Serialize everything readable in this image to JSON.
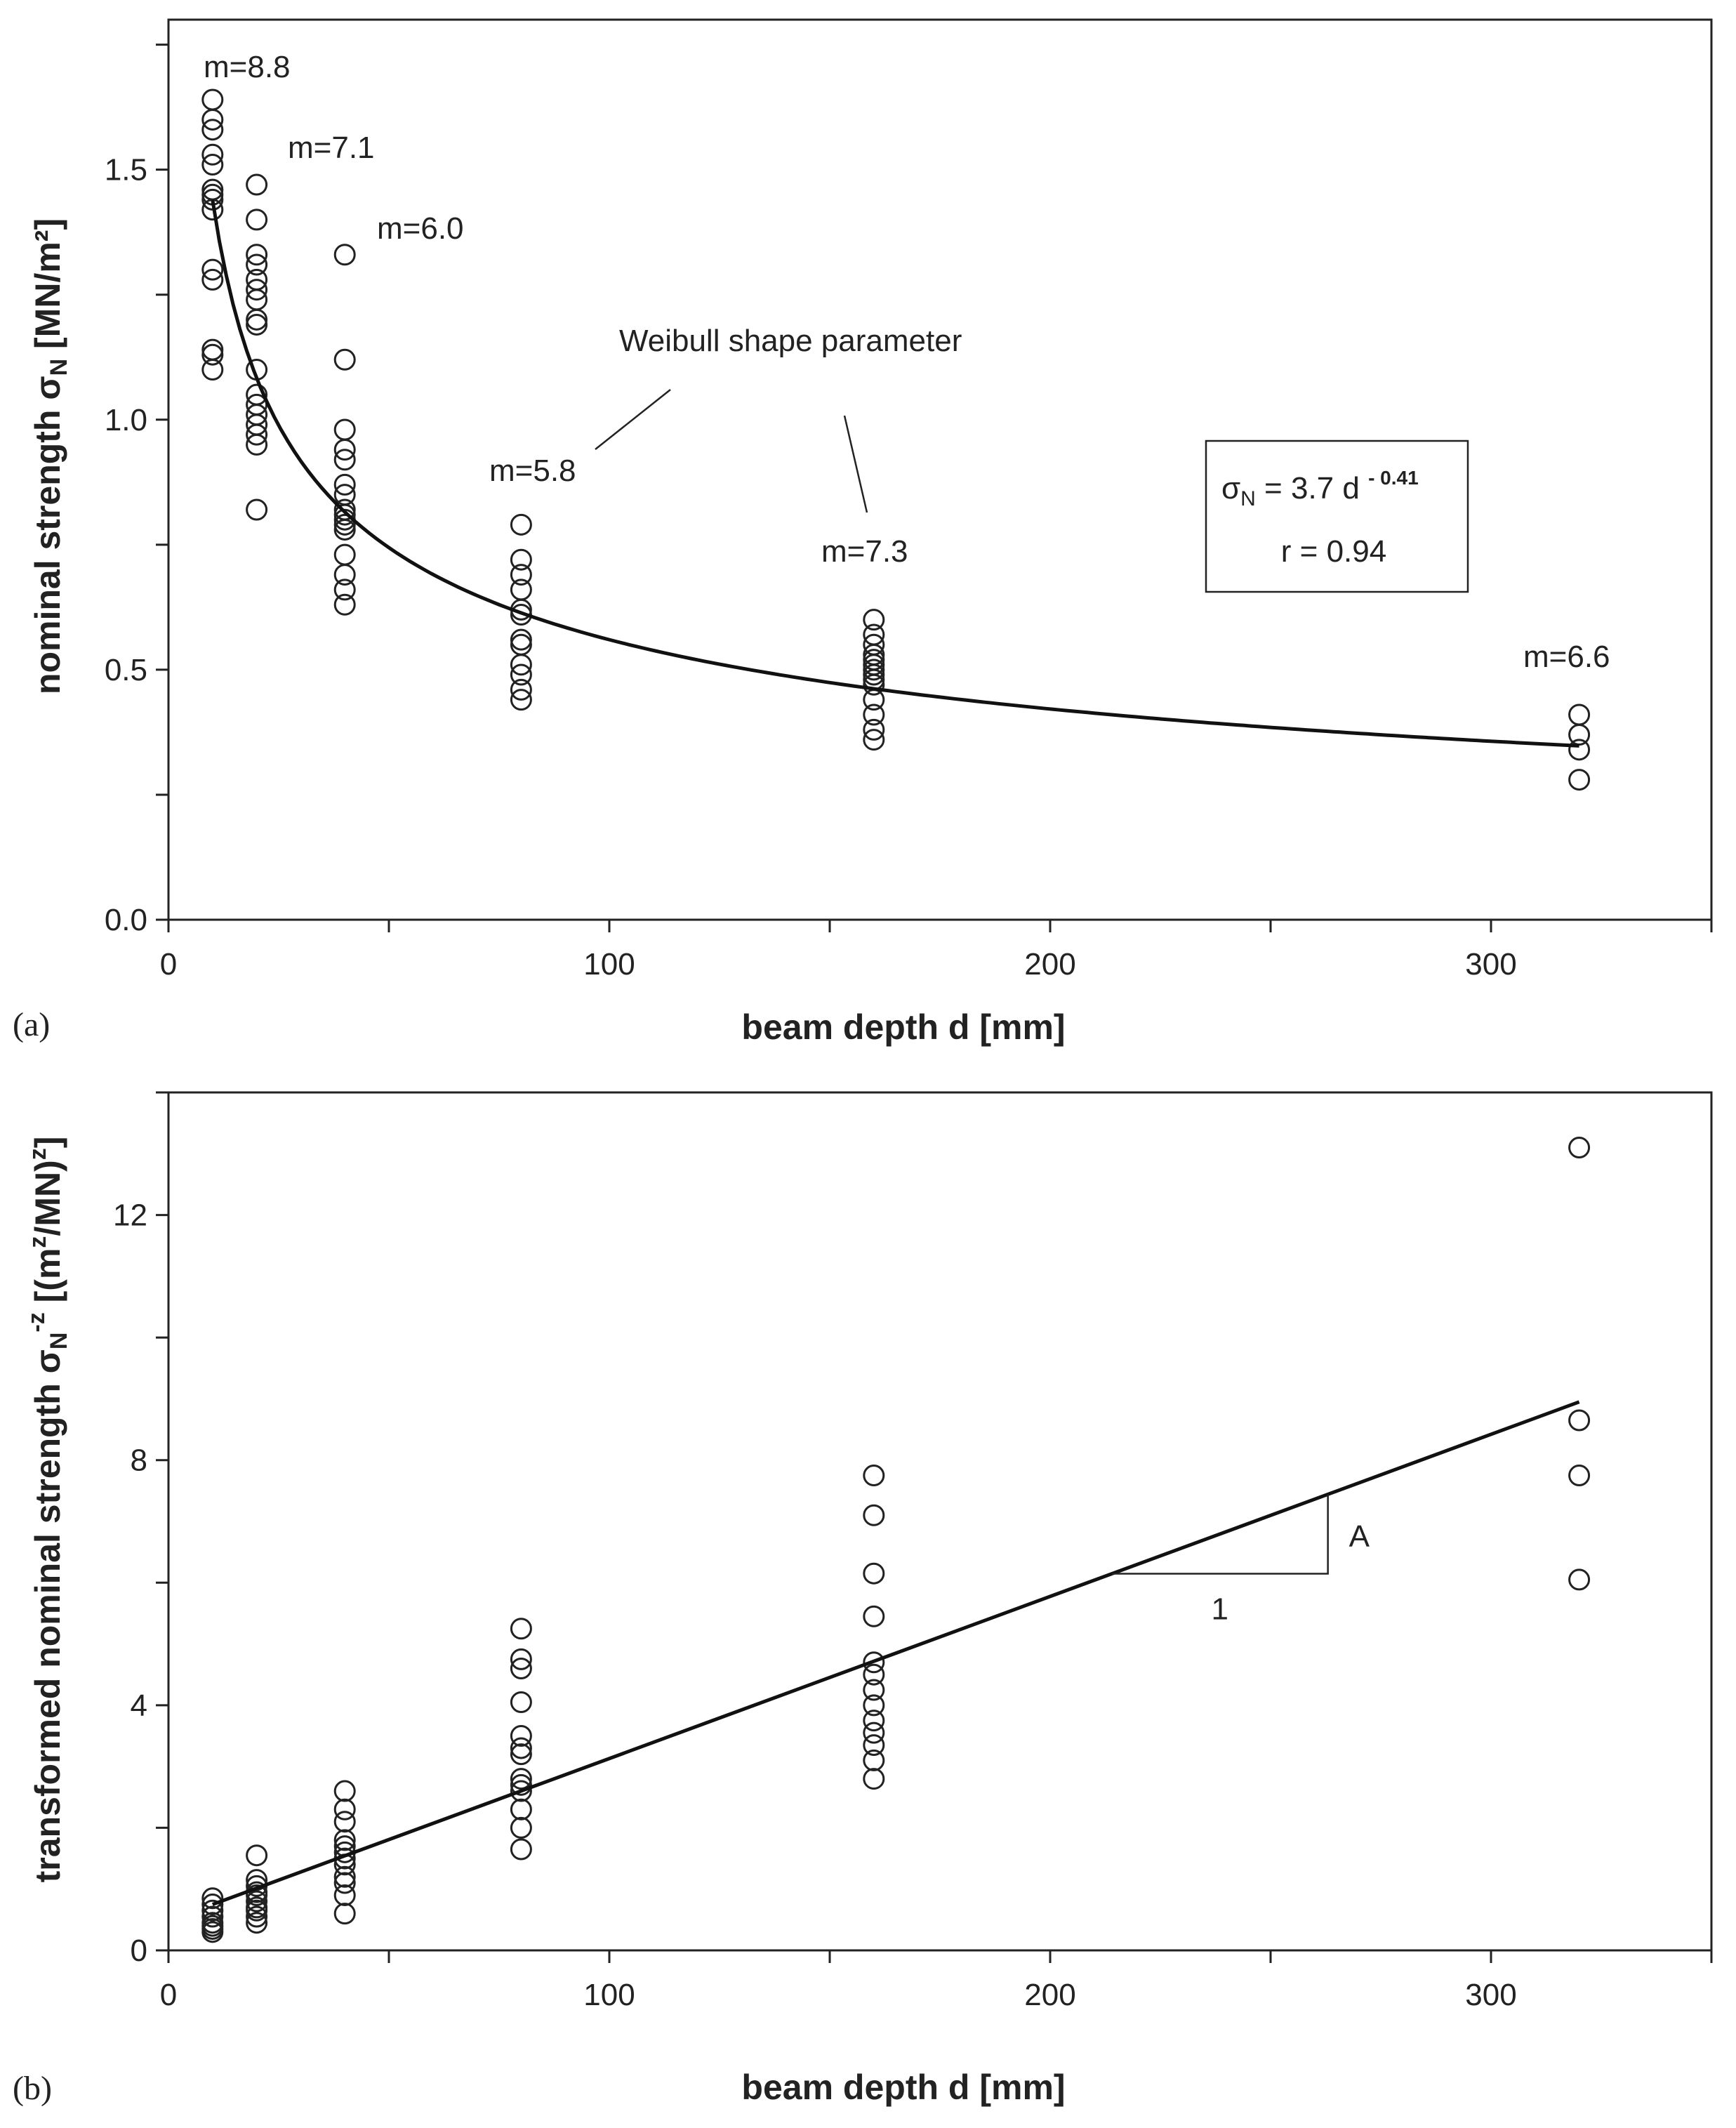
{
  "chart_data": [
    {
      "type": "scatter",
      "panel_label": "(a)",
      "xlabel": "beam depth d [mm]",
      "ylabel": "nominal strength σN [MN/m²]",
      "xlim": [
        0,
        350
      ],
      "ylim": [
        0,
        1.8
      ],
      "xticks": [
        0,
        100,
        200,
        300
      ],
      "xtick_labels": [
        "0",
        "100",
        "200",
        "300"
      ],
      "yticks": [
        0,
        0.5,
        1.0,
        1.5
      ],
      "ytick_labels": [
        "0.0",
        "0.5",
        "1.0",
        "1.5"
      ],
      "series": [
        {
          "name": "d=10",
          "x": 10,
          "values": [
            1.64,
            1.6,
            1.58,
            1.53,
            1.51,
            1.46,
            1.45,
            1.44,
            1.42,
            1.3,
            1.28,
            1.14,
            1.13,
            1.1
          ]
        },
        {
          "name": "d=20",
          "x": 20,
          "values": [
            1.47,
            1.4,
            1.33,
            1.31,
            1.28,
            1.26,
            1.24,
            1.2,
            1.19,
            1.1,
            1.05,
            1.03,
            1.01,
            0.99,
            0.97,
            0.95,
            0.82
          ]
        },
        {
          "name": "d=40",
          "x": 40,
          "values": [
            1.33,
            1.12,
            0.98,
            0.94,
            0.92,
            0.87,
            0.85,
            0.82,
            0.81,
            0.8,
            0.79,
            0.78,
            0.73,
            0.69,
            0.66,
            0.63
          ]
        },
        {
          "name": "d=80",
          "x": 80,
          "values": [
            0.79,
            0.72,
            0.69,
            0.66,
            0.62,
            0.61,
            0.56,
            0.55,
            0.51,
            0.49,
            0.46,
            0.44
          ]
        },
        {
          "name": "d=160",
          "x": 160,
          "values": [
            0.6,
            0.57,
            0.55,
            0.53,
            0.52,
            0.51,
            0.5,
            0.49,
            0.48,
            0.47,
            0.44,
            0.41,
            0.38,
            0.36
          ]
        },
        {
          "name": "d=320",
          "x": 320,
          "values": [
            0.41,
            0.37,
            0.34,
            0.28
          ]
        }
      ],
      "fit": {
        "equation": "σN = 3.7 d^-0.41",
        "coef": 3.7,
        "exponent": -0.41,
        "x_range": [
          10,
          320
        ],
        "r": "r = 0.94"
      },
      "legend_box": {
        "lhs": "σ",
        "sub": "N",
        "mid": " = 3.7 d ",
        "sup": "- 0.41",
        "r_text": "r = 0.94"
      },
      "annotations": [
        "m=8.8",
        "m=7.1",
        "m=6.0",
        "m=5.8",
        "m=7.3",
        "m=6.6",
        "Weibull shape parameter"
      ]
    },
    {
      "type": "scatter",
      "panel_label": "(b)",
      "xlabel": "beam depth d [mm]",
      "ylabel": "transformed nominal strength σN^-z [(m²/MN)^z]",
      "xlim": [
        0,
        350
      ],
      "ylim": [
        0,
        14
      ],
      "xticks": [
        0,
        100,
        200,
        300
      ],
      "xtick_labels": [
        "0",
        "100",
        "200",
        "300"
      ],
      "yticks": [
        0,
        4,
        8,
        12
      ],
      "ytick_labels": [
        "0",
        "4",
        "8",
        "12"
      ],
      "series": [
        {
          "name": "d=10",
          "x": 10,
          "values": [
            0.85,
            0.75,
            0.65,
            0.55,
            0.45,
            0.4,
            0.35,
            0.3
          ]
        },
        {
          "name": "d=20",
          "x": 20,
          "values": [
            1.55,
            1.15,
            1.05,
            0.95,
            0.9,
            0.8,
            0.7,
            0.65,
            0.55,
            0.45
          ]
        },
        {
          "name": "d=40",
          "x": 40,
          "values": [
            2.6,
            2.3,
            2.1,
            1.8,
            1.7,
            1.6,
            1.5,
            1.4,
            1.2,
            1.1,
            0.9,
            0.6
          ]
        },
        {
          "name": "d=80",
          "x": 80,
          "values": [
            5.25,
            4.75,
            4.6,
            4.05,
            3.5,
            3.3,
            3.2,
            2.8,
            2.7,
            2.6,
            2.3,
            2.0,
            1.65
          ]
        },
        {
          "name": "d=160",
          "x": 160,
          "values": [
            7.75,
            7.1,
            6.15,
            5.45,
            4.7,
            4.5,
            4.25,
            4.0,
            3.75,
            3.55,
            3.35,
            3.1,
            2.8
          ]
        },
        {
          "name": "d=320",
          "x": 320,
          "values": [
            13.1,
            8.65,
            7.75,
            6.05
          ]
        }
      ],
      "fit": {
        "type": "linear",
        "points": [
          [
            10,
            0.75
          ],
          [
            320,
            8.95
          ]
        ]
      },
      "slope_triangle": {
        "x_from": 214,
        "x_to": 263,
        "label_run": "1",
        "label_rise": "A"
      }
    }
  ]
}
